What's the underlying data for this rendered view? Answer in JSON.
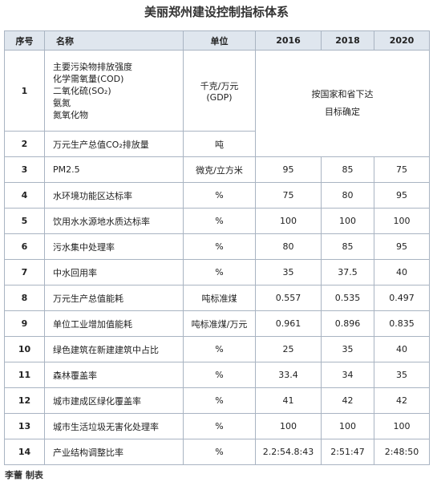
{
  "header": {
    "title": "美丽郑州建设控制指标体系"
  },
  "table": {
    "columns": [
      "序号",
      "名称",
      "单位",
      "2016",
      "2018",
      "2020"
    ],
    "rows": [
      {
        "no": "1",
        "name": [
          "主要污染物排放强度",
          "化学需氧量(COD)",
          "二氧化硫(SO₂)",
          "氨氮",
          "氮氧化物"
        ],
        "unit": [
          "千克/万元",
          "(GDP)"
        ]
      },
      {
        "no": "2",
        "name": [
          "万元生产总值CO₂排放量"
        ],
        "unit": [
          "吨"
        ]
      },
      {
        "no": "3",
        "name": [
          "PM2.5"
        ],
        "unit": [
          "微克/立方米"
        ],
        "values": [
          "95",
          "85",
          "75"
        ]
      },
      {
        "no": "4",
        "name": [
          "水环境功能区达标率"
        ],
        "unit": [
          "%"
        ],
        "values": [
          "75",
          "80",
          "95"
        ]
      },
      {
        "no": "5",
        "name": [
          "饮用水水源地水质达标率"
        ],
        "unit": [
          "%"
        ],
        "values": [
          "100",
          "100",
          "100"
        ]
      },
      {
        "no": "6",
        "name": [
          "污水集中处理率"
        ],
        "unit": [
          "%"
        ],
        "values": [
          "80",
          "85",
          "95"
        ]
      },
      {
        "no": "7",
        "name": [
          "中水回用率"
        ],
        "unit": [
          "%"
        ],
        "values": [
          "35",
          "37.5",
          "40"
        ]
      },
      {
        "no": "8",
        "name": [
          "万元生产总值能耗"
        ],
        "unit": [
          "吨标准煤"
        ],
        "values": [
          "0.557",
          "0.535",
          "0.497"
        ]
      },
      {
        "no": "9",
        "name": [
          "单位工业增加值能耗"
        ],
        "unit": [
          "吨标准煤/万元"
        ],
        "values": [
          "0.961",
          "0.896",
          "0.835"
        ]
      },
      {
        "no": "10",
        "name": [
          "绿色建筑在新建建筑中占比"
        ],
        "unit": [
          "%"
        ],
        "values": [
          "25",
          "35",
          "40"
        ]
      },
      {
        "no": "11",
        "name": [
          "森林覆盖率"
        ],
        "unit": [
          "%"
        ],
        "values": [
          "33.4",
          "34",
          "35"
        ]
      },
      {
        "no": "12",
        "name": [
          "城市建成区绿化覆盖率"
        ],
        "unit": [
          "%"
        ],
        "values": [
          "41",
          "42",
          "42"
        ]
      },
      {
        "no": "13",
        "name": [
          "城市生活垃圾无害化处理率"
        ],
        "unit": [
          "%"
        ],
        "values": [
          "100",
          "100",
          "100"
        ]
      },
      {
        "no": "14",
        "name": [
          "产业结构调整比率"
        ],
        "unit": [
          "%"
        ],
        "values": [
          "2.2:54.8:43",
          "2:51:47",
          "2:48:50"
        ]
      }
    ],
    "note": [
      "按国家和省下达",
      "目标确定"
    ]
  },
  "footer": {
    "credit": "李蕾 制表"
  }
}
